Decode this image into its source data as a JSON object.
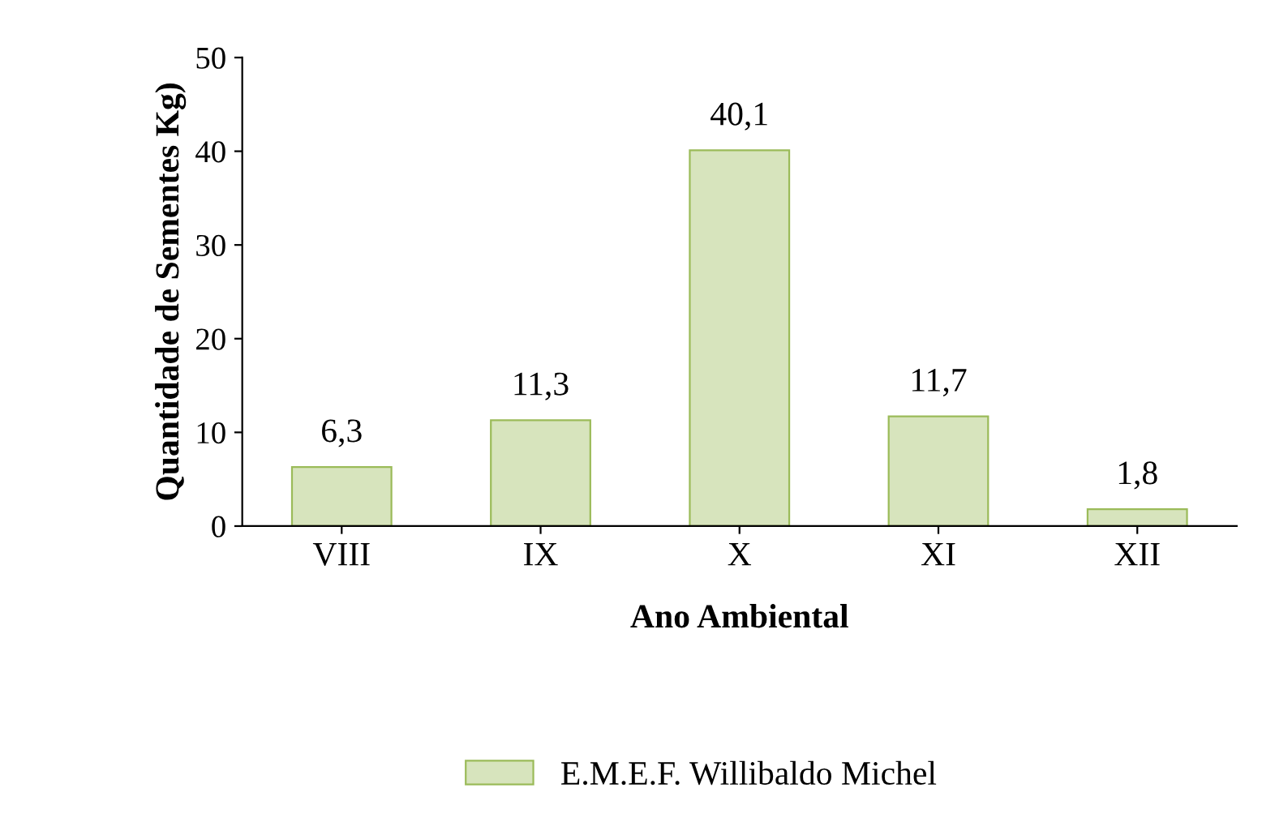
{
  "chart_data": {
    "type": "bar",
    "xlabel": "Ano Ambiental",
    "ylabel": "Quantidade de Sementes Kg)",
    "categories": [
      "VIII",
      "IX",
      "X",
      "XI",
      "XII"
    ],
    "series": [
      {
        "name": "E.M.E.F. Willibaldo Michel",
        "color": "#d7e4bd",
        "values": [
          6.3,
          11.3,
          40.1,
          11.7,
          1.8
        ],
        "value_labels": [
          "6,3",
          "11,3",
          "40,1",
          "11,7",
          "1,8"
        ]
      }
    ],
    "ylim": [
      0,
      50
    ],
    "yticks": [
      0,
      10,
      20,
      30,
      40,
      50
    ],
    "grid": false,
    "legend": "bottom"
  }
}
